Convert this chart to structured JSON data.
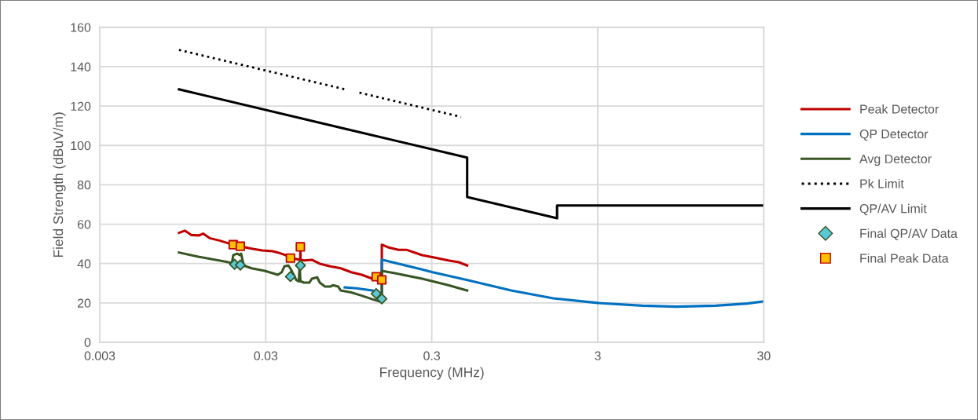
{
  "chart_data": {
    "type": "line",
    "xlabel": "Frequency (MHz)",
    "ylabel": "Field Strength (dBuV/m)",
    "log": "x",
    "grid": true,
    "legend": "right",
    "xlim": [
      0.003,
      30
    ],
    "xticks": [
      0.003,
      0.03,
      0.3,
      3,
      30
    ],
    "ylim": [
      0,
      160
    ],
    "yticks": [
      0,
      20,
      40,
      60,
      80,
      100,
      120,
      140,
      160
    ],
    "series": [
      {
        "name": "Peak Detector",
        "color": "#c00000",
        "line_style": "solid",
        "x": [
          0.009,
          0.00976,
          0.01067,
          0.01191,
          0.01258,
          0.01377,
          0.01593,
          0.01843,
          0.02131,
          0.02465,
          0.02851,
          0.03298,
          0.03546,
          0.03815,
          0.04413,
          0.0484,
          0.0485,
          0.0486,
          0.05103,
          0.0569,
          0.06347,
          0.07342,
          0.0849,
          0.09819,
          0.1136,
          0.1314,
          0.1466,
          0.15,
          0.15,
          0.1634,
          0.189,
          0.2109,
          0.2622,
          0.3144,
          0.3773,
          0.4363,
          0.49
        ],
        "values": [
          55.6,
          56.7,
          54.5,
          54.3,
          55.2,
          52.9,
          51.6,
          49.9,
          48.7,
          47.6,
          46.7,
          46.3,
          45.6,
          44.7,
          42.6,
          41.9,
          48.5,
          41.9,
          41.6,
          41.9,
          39.9,
          38.6,
          37.6,
          35.6,
          34.3,
          32.3,
          31.0,
          31.0,
          49.6,
          48.3,
          47.0,
          47.0,
          44.3,
          43.0,
          41.6,
          40.7,
          39.0
        ]
      },
      {
        "name": "QP Detector",
        "color": "#0070c0",
        "line_style": "solid",
        "x": [
          0.0897,
          0.1056,
          0.1314,
          0.1466,
          0.15,
          0.15,
          0.2622,
          0.3033,
          0.486,
          0.903,
          1.616,
          3,
          5.57,
          8.93,
          15.4,
          23.9,
          30
        ],
        "values": [
          27.9,
          27.4,
          26.3,
          25.0,
          25.0,
          42.0,
          37.0,
          35.6,
          31.7,
          26.3,
          22.3,
          20.0,
          18.6,
          18.1,
          18.6,
          19.7,
          20.8
        ]
      },
      {
        "name": "Avg Detector",
        "color": "#375623",
        "line_style": "solid",
        "x": [
          0.009,
          0.01191,
          0.01713,
          0.01877,
          0.01911,
          0.02018,
          0.02092,
          0.02131,
          0.0221,
          0.02465,
          0.02957,
          0.03546,
          0.03747,
          0.03886,
          0.04103,
          0.04254,
          0.04576,
          0.04745,
          0.048,
          0.0485,
          0.05103,
          0.05489,
          0.0569,
          0.06119,
          0.06347,
          0.06825,
          0.07342,
          0.07612,
          0.08188,
          0.0849,
          0.09819,
          0.1136,
          0.1314,
          0.15,
          0.15,
          0.1823,
          0.2622,
          0.3773,
          0.49
        ],
        "values": [
          45.6,
          43.4,
          41.0,
          40.3,
          44.3,
          45.0,
          44.3,
          45.0,
          39.0,
          37.6,
          36.3,
          34.3,
          35.6,
          38.6,
          39.0,
          37.0,
          31.7,
          31.0,
          39.4,
          31.0,
          30.3,
          30.3,
          32.3,
          33.0,
          30.3,
          28.3,
          28.3,
          29.0,
          28.3,
          26.3,
          25.3,
          23.7,
          21.9,
          20.4,
          36.3,
          35.0,
          32.3,
          29.0,
          26.3
        ]
      },
      {
        "name": "Pk Limit",
        "color": "#000000",
        "line_style": "dotted",
        "x": [
          0.009,
          0.09,
          0.1,
          0.11,
          0.45
        ],
        "values": [
          148.5,
          128.5,
          null,
          126.8,
          114.5
        ]
      },
      {
        "name": "QP/AV Limit",
        "color": "#000000",
        "line_style": "solid",
        "x": [
          0.009,
          0.09,
          0.49,
          0.49,
          1.705,
          1.705,
          30
        ],
        "values": [
          128.5,
          108.5,
          93.8,
          73.8,
          63.0,
          69.5,
          69.5
        ]
      },
      {
        "name": "Final QP/AV Data",
        "type": "scatter",
        "color": "#5bc8d8",
        "marker": "diamond",
        "x": [
          0.01946,
          0.02108,
          0.04224,
          0.04848,
          0.1388,
          0.15
        ],
        "values": [
          39.6,
          39.2,
          33.4,
          39.0,
          24.7,
          22.1
        ]
      },
      {
        "name": "Final Peak Data",
        "type": "scatter",
        "color": "#ffc000",
        "marker": "square",
        "x": [
          0.01911,
          0.02108,
          0.04224,
          0.04848,
          0.1388,
          0.15
        ],
        "values": [
          49.6,
          48.8,
          42.8,
          48.5,
          33.3,
          31.7
        ]
      }
    ]
  }
}
